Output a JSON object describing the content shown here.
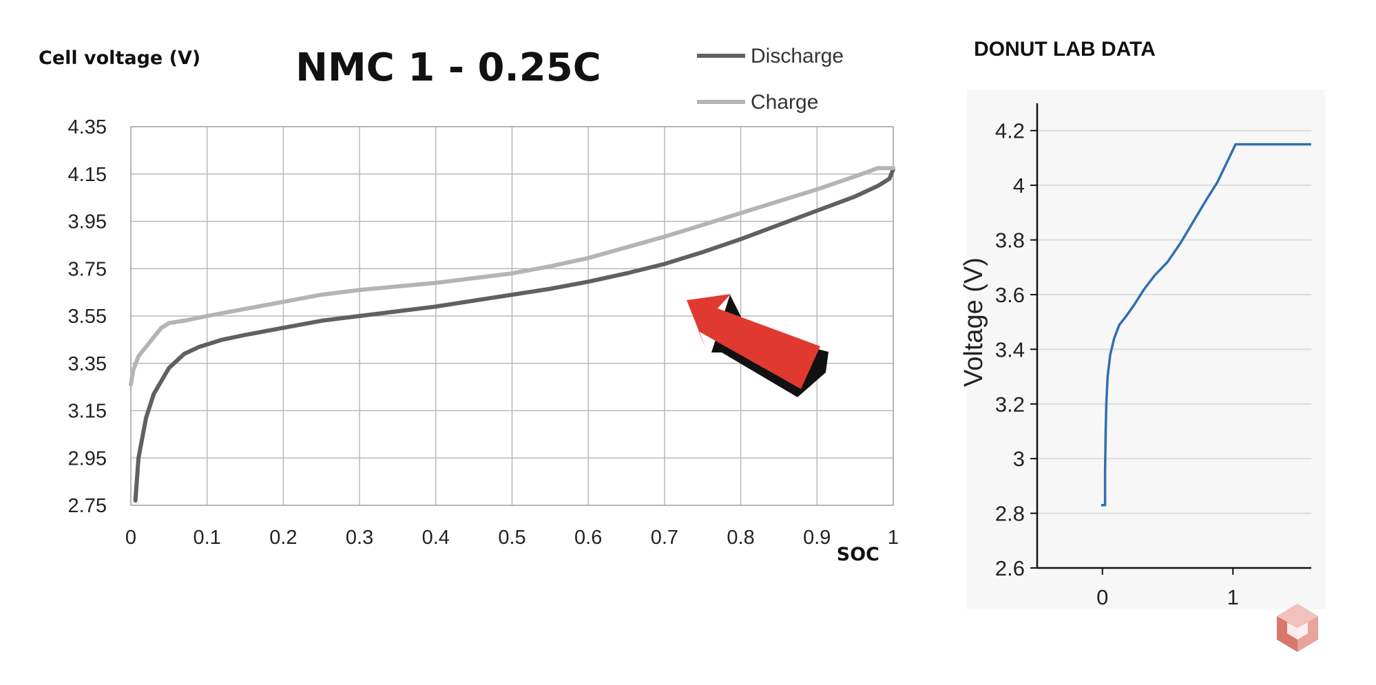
{
  "chart_data": [
    {
      "type": "line",
      "title": "NMC 1 - 0.25C",
      "ylabel": "Cell voltage (V)",
      "xlabel": "SOC",
      "xlim": [
        0,
        1
      ],
      "ylim": [
        2.75,
        4.35
      ],
      "grid": true,
      "legend_position": "top-right",
      "x_ticks": [
        "0",
        "0.1",
        "0.2",
        "0.3",
        "0.4",
        "0.5",
        "0.6",
        "0.7",
        "0.8",
        "0.9",
        "1"
      ],
      "y_ticks": [
        "4.35",
        "4.15",
        "3.95",
        "3.75",
        "3.55",
        "3.35",
        "3.15",
        "2.95",
        "2.75"
      ],
      "series": [
        {
          "name": "Discharge",
          "color": "#606060",
          "x": [
            0.006,
            0.01,
            0.02,
            0.03,
            0.05,
            0.07,
            0.09,
            0.12,
            0.15,
            0.2,
            0.25,
            0.3,
            0.35,
            0.4,
            0.45,
            0.5,
            0.55,
            0.6,
            0.65,
            0.7,
            0.75,
            0.8,
            0.85,
            0.9,
            0.95,
            0.98,
            0.995,
            1.0
          ],
          "y": [
            2.77,
            2.95,
            3.12,
            3.22,
            3.33,
            3.39,
            3.42,
            3.45,
            3.47,
            3.5,
            3.53,
            3.55,
            3.57,
            3.59,
            3.615,
            3.64,
            3.665,
            3.695,
            3.73,
            3.77,
            3.82,
            3.875,
            3.935,
            3.995,
            4.055,
            4.1,
            4.13,
            4.17
          ]
        },
        {
          "name": "Charge",
          "color": "#b4b4b4",
          "x": [
            0.0,
            0.003,
            0.01,
            0.02,
            0.03,
            0.04,
            0.05,
            0.07,
            0.1,
            0.15,
            0.2,
            0.25,
            0.3,
            0.35,
            0.4,
            0.45,
            0.5,
            0.55,
            0.6,
            0.65,
            0.7,
            0.75,
            0.8,
            0.85,
            0.9,
            0.95,
            0.98,
            1.0
          ],
          "y": [
            3.26,
            3.32,
            3.38,
            3.42,
            3.46,
            3.5,
            3.52,
            3.53,
            3.55,
            3.58,
            3.61,
            3.64,
            3.66,
            3.675,
            3.69,
            3.71,
            3.73,
            3.76,
            3.795,
            3.84,
            3.885,
            3.935,
            3.985,
            4.035,
            4.085,
            4.14,
            4.175,
            4.175
          ]
        }
      ],
      "annotations": [
        {
          "type": "arrow",
          "color": "#e03a30",
          "points_to": [
            0.72,
            3.6
          ]
        }
      ]
    },
    {
      "type": "line",
      "title": "DONUT LAB DATA",
      "ylabel": "Voltage (V)",
      "xlabel": "",
      "xlim": [
        -0.5,
        1.6
      ],
      "ylim": [
        2.6,
        4.3
      ],
      "grid": true,
      "x_ticks": [
        "0",
        "1"
      ],
      "y_ticks": [
        "4.2",
        "4",
        "3.8",
        "3.6",
        "3.4",
        "3.2",
        "3",
        "2.8",
        "2.6"
      ],
      "series": [
        {
          "color": "#2f6fb2",
          "x": [
            -0.01,
            0.02,
            0.02,
            0.025,
            0.03,
            0.04,
            0.06,
            0.09,
            0.13,
            0.18,
            0.24,
            0.32,
            0.4,
            0.5,
            0.6,
            0.7,
            0.8,
            0.88,
            0.95,
            1.02,
            1.1,
            1.3,
            1.6
          ],
          "y": [
            2.83,
            2.83,
            2.95,
            3.1,
            3.2,
            3.3,
            3.38,
            3.44,
            3.49,
            3.52,
            3.56,
            3.62,
            3.67,
            3.72,
            3.79,
            3.87,
            3.95,
            4.01,
            4.08,
            4.15,
            4.15,
            4.15,
            4.15
          ]
        }
      ]
    }
  ],
  "logo": {
    "name": "cube-logo-icon",
    "color": "#d9776c"
  }
}
